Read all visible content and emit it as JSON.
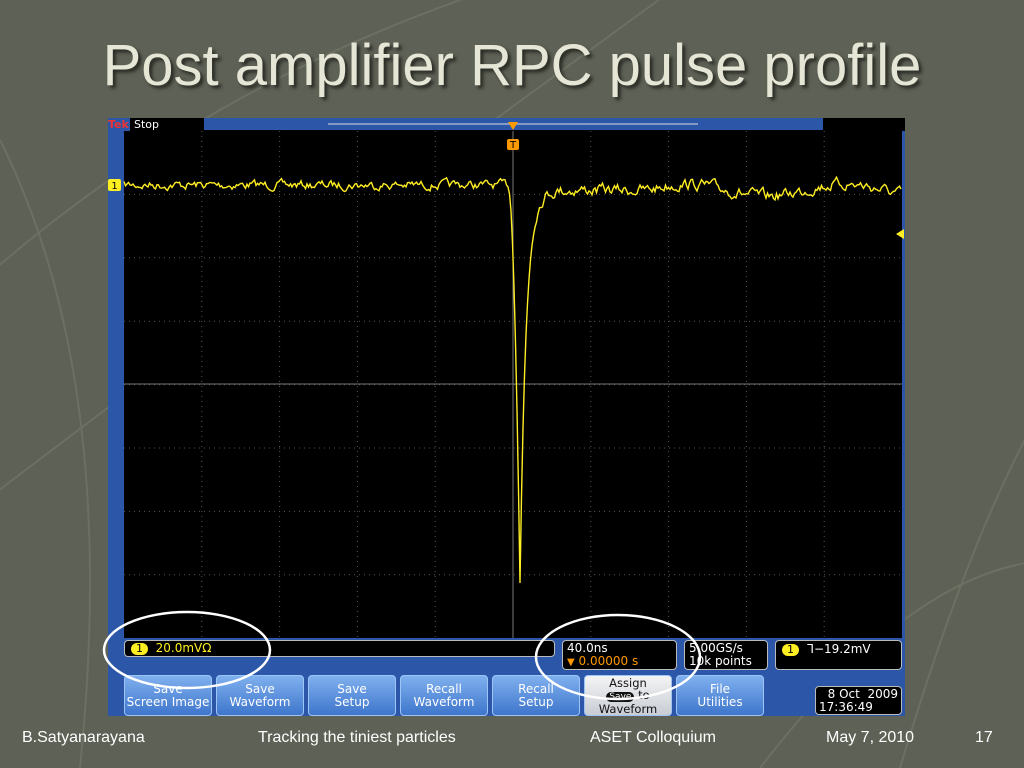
{
  "title": "Post amplifier RPC pulse profile",
  "scope": {
    "status": {
      "brand": "Tek",
      "state": "Stop"
    },
    "markers": {
      "channel": "1",
      "trigger": "T"
    },
    "readouts": {
      "channel": {
        "label": "1",
        "scale": "20.0mVΩ"
      },
      "timebase": {
        "scale": "40.0ns",
        "position": "0.00000 s"
      },
      "acquisition": {
        "rate": "5.00GS/s",
        "record": "10k points"
      },
      "trigger": {
        "label": "1",
        "level": "−19.2mV"
      }
    },
    "buttons": [
      [
        "Save",
        "Screen Image"
      ],
      [
        "Save",
        "Waveform"
      ],
      [
        "Save",
        "Setup"
      ],
      [
        "Recall",
        "Waveform"
      ],
      [
        "Recall",
        "Setup"
      ],
      [
        "Assign",
        "Save",
        "to",
        "Waveform"
      ],
      [
        "File",
        "Utilities"
      ]
    ],
    "datetime": {
      "date": "8 Oct  2009",
      "time": "17:36:49"
    }
  },
  "footer": {
    "author": "B.Satyanarayana",
    "talk": "Tracking the tiniest particles",
    "event": "ASET Colloquium",
    "date": "May 7, 2010",
    "page": "17"
  }
}
